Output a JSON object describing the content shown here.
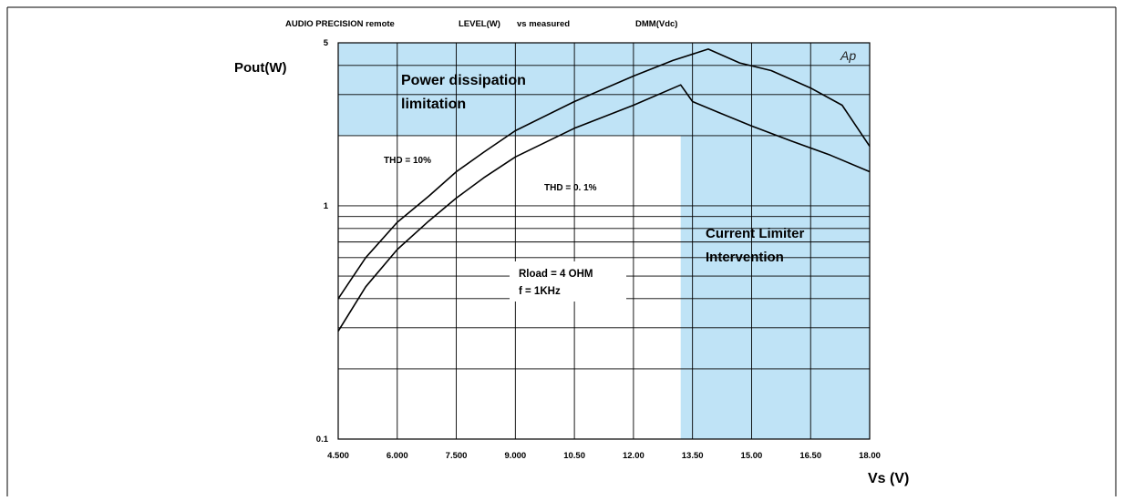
{
  "chart_data": {
    "type": "line",
    "header": {
      "source": "AUDIO PRECISION remote",
      "y_measure": "LEVEL(W)",
      "vs": "vs measured",
      "x_measure": "DMM(Vdc)"
    },
    "ylabel": "Pout(W)",
    "xlabel": "Vs (V)",
    "yscale": "log",
    "ylim": [
      0.1,
      5
    ],
    "xlim": [
      4.5,
      18.0
    ],
    "y_tick_labels": [
      {
        "value": 5,
        "label": "5"
      },
      {
        "value": 1,
        "label": "1"
      },
      {
        "value": 0.1,
        "label": "0.1"
      }
    ],
    "x_ticks": [
      4.5,
      6.0,
      7.5,
      9.0,
      10.5,
      12.0,
      13.5,
      15.0,
      16.5,
      18.0
    ],
    "x_tick_labels": [
      "4.500",
      "6.000",
      "7.500",
      "9.000",
      "10.50",
      "12.00",
      "13.50",
      "15.00",
      "16.50",
      "18.00"
    ],
    "y_gridlines": [
      0.2,
      0.3,
      0.4,
      0.5,
      0.6,
      0.7,
      0.8,
      0.9,
      1,
      2,
      3,
      4,
      5
    ],
    "grid": true,
    "logo": "Ap",
    "regions": [
      {
        "name": "power-dissipation",
        "label_lines": [
          "Power dissipation",
          "limitation"
        ],
        "color": "#bfe3f6",
        "y_from": 2.0,
        "y_to": 5.0
      },
      {
        "name": "current-limiter",
        "label_lines": [
          "Current Limiter",
          "Intervention"
        ],
        "color": "#bfe3f6",
        "x_from": 13.2,
        "x_to": 18.0
      }
    ],
    "annotations": {
      "thd_high": "THD = 10%",
      "thd_low": "THD = 0. 1%",
      "rload": "Rload = 4 OHM",
      "freq": "f = 1KHz"
    },
    "series": [
      {
        "name": "THD = 10%",
        "x": [
          4.5,
          5.2,
          6.0,
          6.8,
          7.5,
          8.2,
          9.0,
          10.5,
          12.0,
          13.0,
          13.9,
          14.7,
          15.5,
          16.5,
          17.3,
          18.0
        ],
        "y": [
          0.4,
          0.6,
          0.85,
          1.1,
          1.4,
          1.7,
          2.1,
          2.8,
          3.6,
          4.2,
          4.7,
          4.1,
          3.8,
          3.2,
          2.7,
          1.8
        ]
      },
      {
        "name": "THD = 0. 1%",
        "x": [
          4.5,
          5.2,
          6.0,
          6.8,
          7.5,
          8.2,
          9.0,
          10.5,
          12.0,
          13.2,
          13.5,
          14.2,
          15.0,
          16.0,
          17.0,
          18.0
        ],
        "y": [
          0.29,
          0.45,
          0.65,
          0.86,
          1.08,
          1.32,
          1.62,
          2.15,
          2.7,
          3.3,
          2.8,
          2.5,
          2.2,
          1.9,
          1.65,
          1.4
        ]
      }
    ]
  }
}
